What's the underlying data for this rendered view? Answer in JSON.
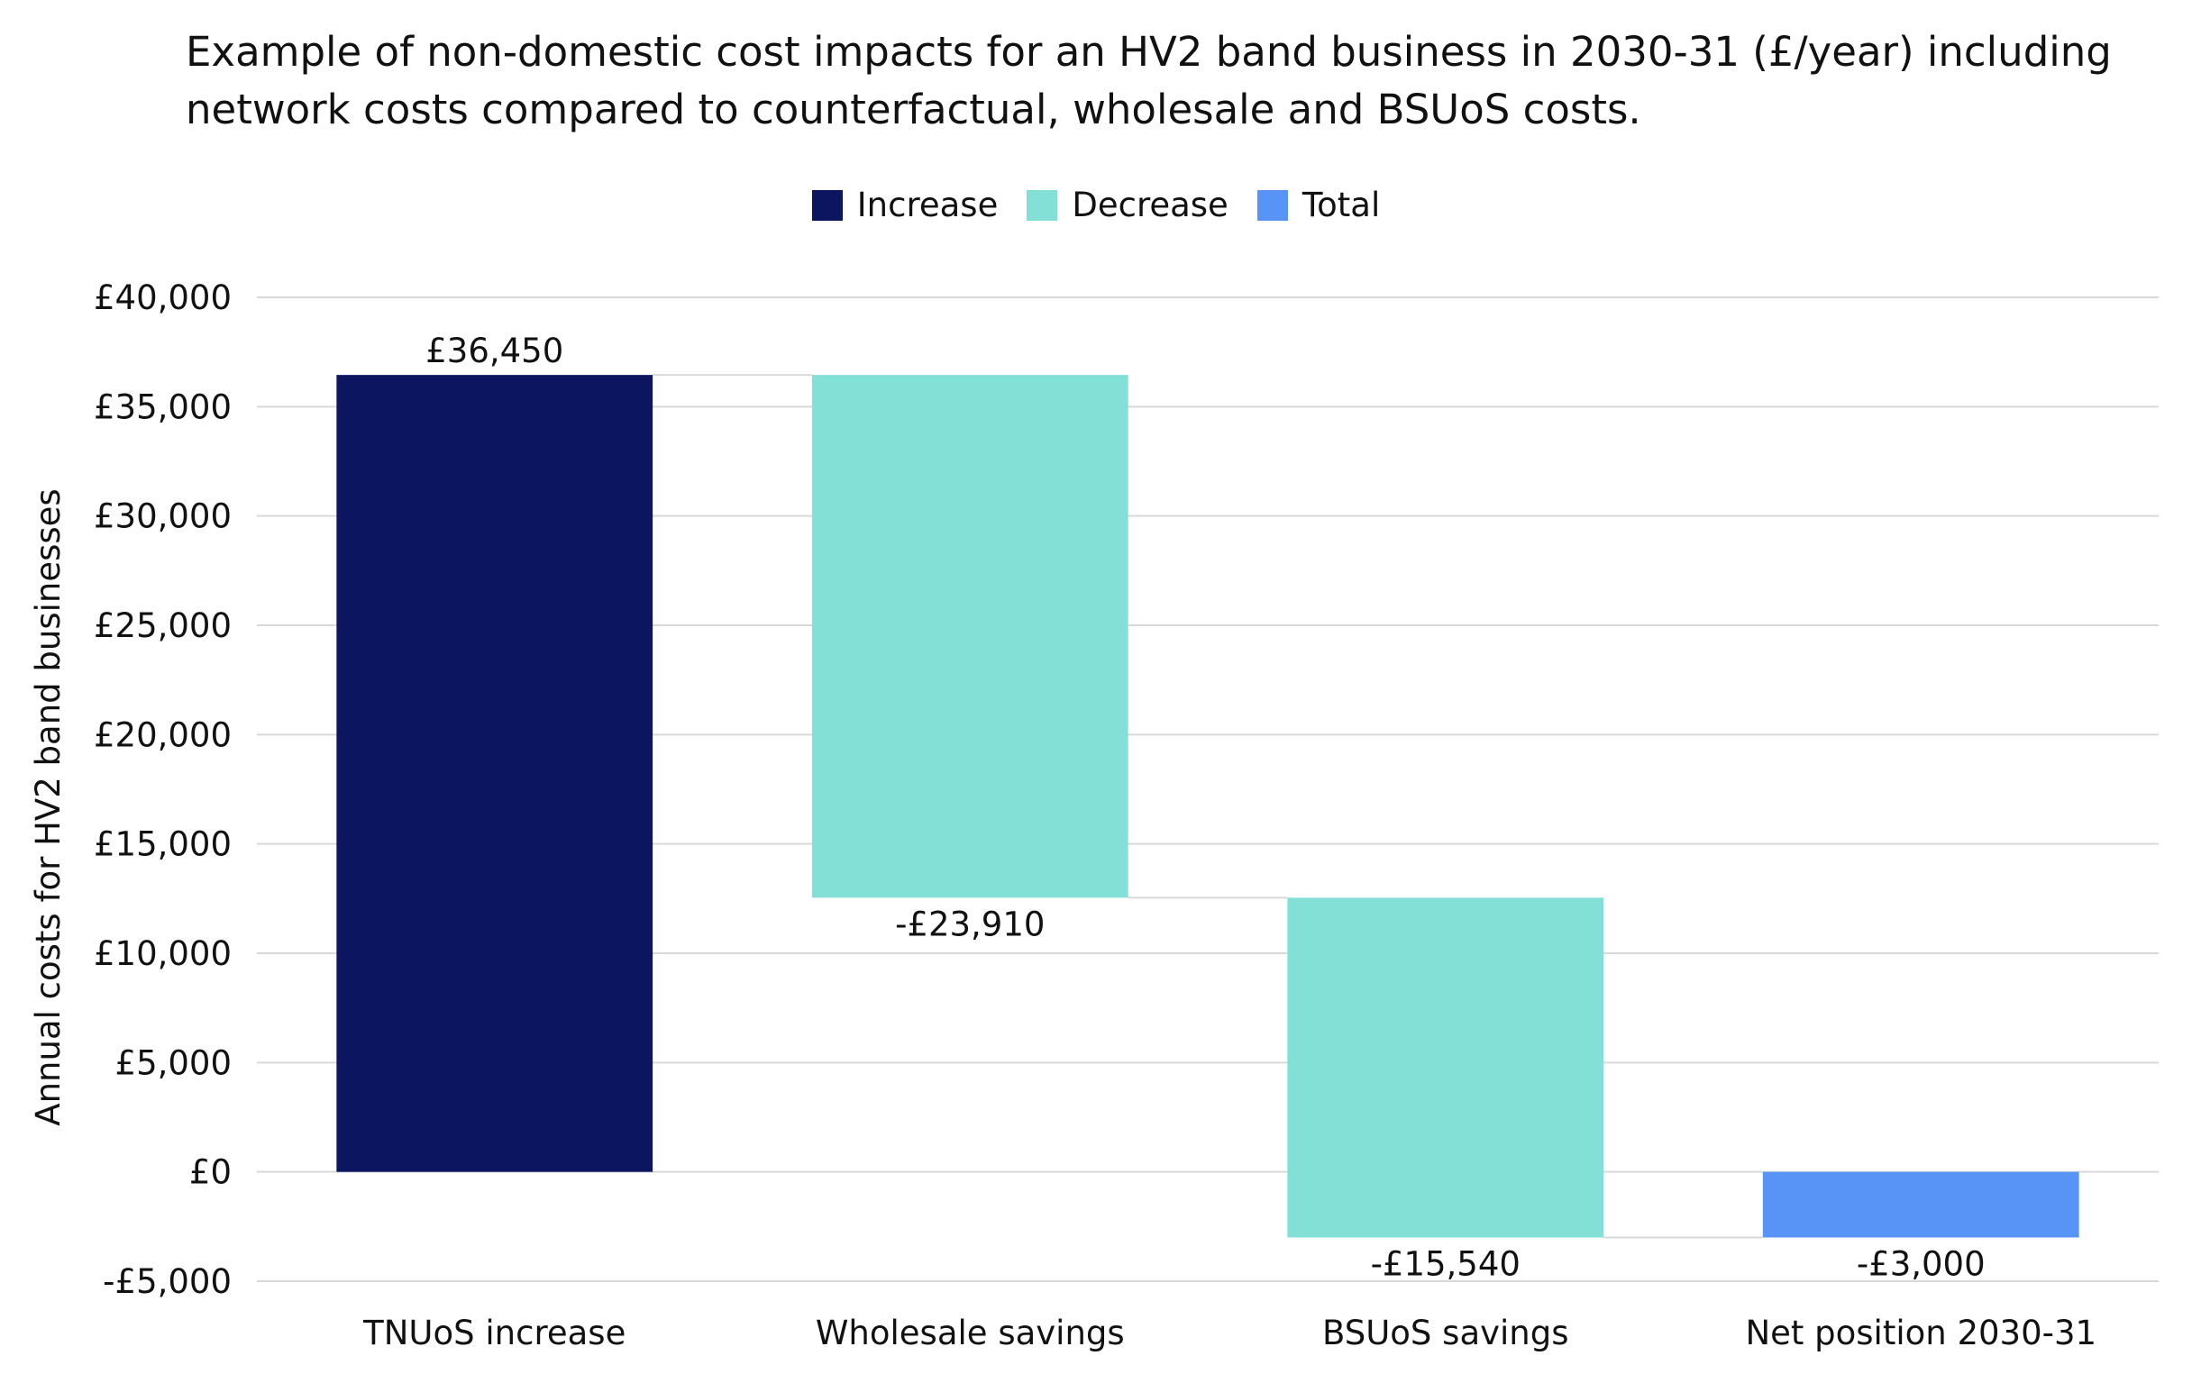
{
  "title_lines": [
    "Example of non-domestic cost impacts for an HV2 band business in 2030-31 (£/year) including",
    "network costs compared to counterfactual, wholesale and BSUoS costs."
  ],
  "legend": [
    {
      "label": "Increase",
      "color": "#0b1560"
    },
    {
      "label": "Decrease",
      "color": "#82e0d7"
    },
    {
      "label": "Total",
      "color": "#5894f5"
    }
  ],
  "chart_data": {
    "type": "bar",
    "subtype": "waterfall",
    "categories": [
      "TNUoS increase",
      "Wholesale savings",
      "BSUoS savings",
      "Net position 2030-31"
    ],
    "values": [
      36450,
      -23910,
      -15540,
      -3000
    ],
    "kinds": [
      "increase",
      "decrease",
      "decrease",
      "total"
    ],
    "data_labels": [
      "£36,450",
      "-£23,910",
      "-£15,540",
      "-£3,000"
    ],
    "ylabel": "Annual costs for HV2 band businesses",
    "ylim": [
      -5000,
      40000
    ],
    "yticks": [
      40000,
      35000,
      30000,
      25000,
      20000,
      15000,
      10000,
      5000,
      0,
      -5000
    ],
    "ytick_labels": [
      "£40,000",
      "£35,000",
      "£30,000",
      "£25,000",
      "£20,000",
      "£15,000",
      "£10,000",
      "£5,000",
      "£0",
      "-£5,000"
    ],
    "grid": true,
    "connectors": true,
    "legend_position": "top-center"
  }
}
